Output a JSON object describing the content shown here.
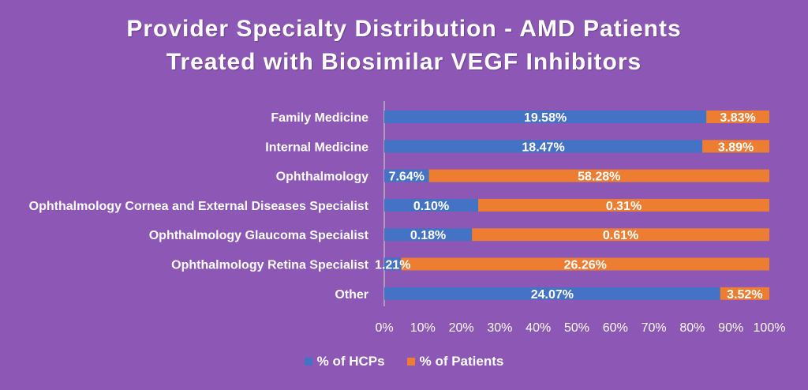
{
  "title_line_1": "Provider Specialty Distribution - AMD Patients",
  "title_line_2": "Treated with Biosimilar VEGF Inhibitors",
  "colors": {
    "background": "#8c57b5",
    "hcps": "#4472c4",
    "patients": "#ed7d31",
    "text": "#ffffff"
  },
  "chart_data": {
    "type": "bar",
    "orientation": "horizontal",
    "stacking": "percent",
    "categories": [
      "Family Medicine",
      "Internal Medicine",
      "Ophthalmology",
      "Ophthalmology Cornea and External Diseases Specialist",
      "Ophthalmology Glaucoma Specialist",
      "Ophthalmology Retina Specialist",
      "Other"
    ],
    "series": [
      {
        "name": "% of HCPs",
        "values": [
          19.58,
          18.47,
          7.64,
          0.1,
          0.18,
          1.21,
          24.07
        ],
        "labels": [
          "19.58%",
          "18.47%",
          "7.64%",
          "0.10%",
          "0.18%",
          "1.21%",
          "24.07%"
        ]
      },
      {
        "name": "% of Patients",
        "values": [
          3.83,
          3.89,
          58.28,
          0.31,
          0.61,
          26.26,
          3.52
        ],
        "labels": [
          "3.83%",
          "3.89%",
          "58.28%",
          "0.31%",
          "0.61%",
          "26.26%",
          "3.52%"
        ]
      }
    ],
    "xlim": [
      0,
      100
    ],
    "x_ticks": [
      "0%",
      "10%",
      "20%",
      "30%",
      "40%",
      "50%",
      "60%",
      "70%",
      "80%",
      "90%",
      "100%"
    ],
    "legend_position": "bottom",
    "grid": false
  }
}
